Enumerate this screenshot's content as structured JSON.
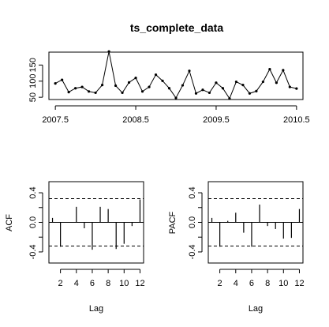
{
  "chart_data": [
    {
      "type": "line",
      "title": "ts_complete_data",
      "xlabel": "",
      "ylabel": "",
      "x_ticks": [
        "2007.5",
        "2008.5",
        "2009.5",
        "2010.5"
      ],
      "x_tick_values": [
        2007.5,
        2008.5,
        2009.5,
        2010.5
      ],
      "y_ticks": [
        "50",
        "100",
        "150"
      ],
      "y_tick_values": [
        50,
        100,
        150
      ],
      "xlim": [
        2007.42,
        2010.58
      ],
      "ylim": [
        43,
        190
      ],
      "point_markers": true,
      "color": "#000000",
      "series": [
        {
          "x_start": 2007.5,
          "x_step": 0.0833333,
          "values": [
            93,
            104,
            66,
            78,
            82,
            68,
            64,
            88,
            192,
            86,
            64,
            96,
            110,
            68,
            82,
            120,
            101,
            78,
            48,
            87,
            132,
            62,
            73,
            64,
            95,
            78,
            46,
            98,
            88,
            62,
            69,
            98,
            137,
            95,
            134,
            82,
            77
          ]
        }
      ]
    },
    {
      "type": "bar",
      "subtype": "acf",
      "ylabel": "ACF",
      "xlabel": "Lag",
      "x_ticks": [
        "2",
        "4",
        "6",
        "8",
        "10",
        "12"
      ],
      "x_tick_values": [
        2,
        4,
        6,
        8,
        10,
        12
      ],
      "y_ticks": [
        "-0.4",
        "0.0",
        "0.4"
      ],
      "y_tick_values": [
        -0.4,
        0.0,
        0.4
      ],
      "xlim": [
        0.55,
        12.45
      ],
      "ylim": [
        -0.55,
        0.55
      ],
      "confidence_limit": 0.32,
      "lags": [
        1,
        2,
        3,
        4,
        5,
        6,
        7,
        8,
        9,
        10,
        11,
        12
      ],
      "values": [
        0.06,
        -0.33,
        0.0,
        0.21,
        -0.08,
        -0.37,
        0.21,
        0.18,
        -0.36,
        -0.29,
        -0.05,
        0.31
      ]
    },
    {
      "type": "bar",
      "subtype": "pacf",
      "ylabel": "PACF",
      "xlabel": "Lag",
      "x_ticks": [
        "2",
        "4",
        "6",
        "8",
        "10",
        "12"
      ],
      "x_tick_values": [
        2,
        4,
        6,
        8,
        10,
        12
      ],
      "y_ticks": [
        "-0.4",
        "0.0",
        "0.4"
      ],
      "y_tick_values": [
        -0.4,
        0.0,
        0.4
      ],
      "xlim": [
        0.55,
        12.45
      ],
      "ylim": [
        -0.55,
        0.55
      ],
      "confidence_limit": 0.32,
      "lags": [
        1,
        2,
        3,
        4,
        5,
        6,
        7,
        8,
        9,
        10,
        11,
        12
      ],
      "values": [
        0.06,
        -0.33,
        0.02,
        0.13,
        -0.14,
        -0.33,
        0.24,
        -0.05,
        -0.09,
        -0.22,
        -0.21,
        0.18
      ]
    }
  ]
}
